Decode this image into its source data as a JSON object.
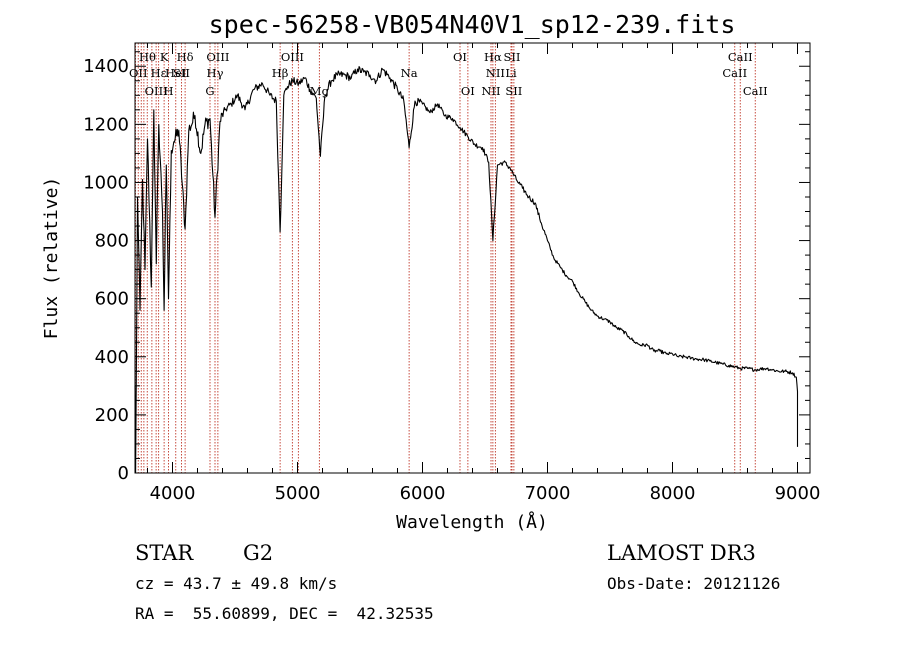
{
  "chart_data": {
    "type": "line",
    "title": "spec-56258-VB054N40V1_sp12-239.fits",
    "xlabel": "Wavelength (Å)",
    "ylabel": "Flux (relative)",
    "xlim": [
      3700,
      9100
    ],
    "ylim": [
      0,
      1480
    ],
    "xticks": [
      4000,
      5000,
      6000,
      7000,
      8000,
      9000
    ],
    "yticks": [
      0,
      200,
      400,
      600,
      800,
      1000,
      1200,
      1400
    ],
    "series": [
      {
        "name": "flux",
        "x": [
          3700,
          3705,
          3720,
          3740,
          3760,
          3780,
          3800,
          3830,
          3850,
          3870,
          3890,
          3920,
          3933,
          3950,
          3968,
          3990,
          4010,
          4050,
          4101,
          4130,
          4180,
          4226,
          4260,
          4300,
          4340,
          4380,
          4420,
          4470,
          4520,
          4580,
          4650,
          4720,
          4780,
          4830,
          4861,
          4890,
          4920,
          4960,
          5010,
          5060,
          5100,
          5150,
          5183,
          5220,
          5270,
          5320,
          5380,
          5430,
          5480,
          5530,
          5580,
          5630,
          5680,
          5740,
          5800,
          5850,
          5893,
          5940,
          6000,
          6060,
          6120,
          6180,
          6240,
          6300,
          6360,
          6420,
          6480,
          6530,
          6563,
          6600,
          6650,
          6700,
          6750,
          6800,
          6850,
          6900,
          6950,
          7000,
          7050,
          7100,
          7150,
          7200,
          7250,
          7300,
          7350,
          7400,
          7450,
          7500,
          7550,
          7600,
          7650,
          7700,
          7750,
          7800,
          7850,
          7900,
          7950,
          8000,
          8050,
          8100,
          8150,
          8200,
          8250,
          8300,
          8350,
          8400,
          8450,
          8498,
          8542,
          8600,
          8662,
          8700,
          8750,
          8800,
          8850,
          8900,
          8960,
          8990,
          9000,
          9000
        ],
        "values": [
          300,
          0,
          950,
          560,
          1010,
          700,
          1150,
          640,
          1250,
          720,
          1200,
          900,
          560,
          1060,
          600,
          1110,
          1140,
          1180,
          840,
          1180,
          1230,
          1100,
          1200,
          1220,
          880,
          1210,
          1250,
          1270,
          1300,
          1250,
          1320,
          1340,
          1300,
          1280,
          830,
          1300,
          1330,
          1350,
          1340,
          1360,
          1320,
          1290,
          1090,
          1300,
          1350,
          1370,
          1370,
          1360,
          1390,
          1380,
          1370,
          1350,
          1390,
          1360,
          1320,
          1280,
          1120,
          1280,
          1270,
          1240,
          1270,
          1230,
          1220,
          1190,
          1160,
          1130,
          1120,
          1070,
          800,
          1060,
          1070,
          1050,
          1010,
          980,
          950,
          930,
          860,
          800,
          740,
          710,
          680,
          660,
          620,
          590,
          560,
          540,
          530,
          520,
          500,
          490,
          470,
          450,
          440,
          440,
          420,
          420,
          410,
          410,
          400,
          400,
          395,
          392,
          390,
          385,
          380,
          375,
          370,
          365,
          360,
          360,
          355,
          358,
          360,
          355,
          350,
          350,
          345,
          330,
          280,
          90
        ]
      }
    ],
    "line_markers": [
      {
        "x": 3704,
        "label": ""
      },
      {
        "x": 3726,
        "label": "OII"
      },
      {
        "x": 3750,
        "label": ""
      },
      {
        "x": 3771,
        "label": ""
      },
      {
        "x": 3798,
        "label": ""
      },
      {
        "x": 3835,
        "label": ""
      },
      {
        "x": 3869,
        "label": "OIII"
      },
      {
        "x": 3889,
        "label": "Hε"
      },
      {
        "x": 3933,
        "label": "K"
      },
      {
        "x": 3968,
        "label": "H"
      },
      {
        "x": 4026,
        "label": "HeI"
      },
      {
        "x": 4072,
        "label": "SII"
      },
      {
        "x": 4101,
        "label": "Hδ"
      },
      {
        "x": 4300,
        "label": "G"
      },
      {
        "x": 4340,
        "label": "Hγ"
      },
      {
        "x": 4363,
        "label": "OIII"
      },
      {
        "x": 4861,
        "label": "Hβ"
      },
      {
        "x": 4959,
        "label": "OIII"
      },
      {
        "x": 5007,
        "label": ""
      },
      {
        "x": 5175,
        "label": "Mg"
      },
      {
        "x": 5893,
        "label": "Na"
      },
      {
        "x": 6300,
        "label": "OI"
      },
      {
        "x": 6363,
        "label": "OI"
      },
      {
        "x": 6548,
        "label": "NII"
      },
      {
        "x": 6563,
        "label": "Hα"
      },
      {
        "x": 6583,
        "label": "NII"
      },
      {
        "x": 6708,
        "label": "Li"
      },
      {
        "x": 6716,
        "label": "SII"
      },
      {
        "x": 6731,
        "label": "SII"
      },
      {
        "x": 8498,
        "label": "CaII"
      },
      {
        "x": 8542,
        "label": "CaII"
      },
      {
        "x": 8662,
        "label": "CaII"
      }
    ],
    "label_rows": [
      [
        {
          "text": "Hθ",
          "x": 3800
        },
        {
          "text": "K",
          "x": 3933
        },
        {
          "text": "Hδ",
          "x": 4101
        },
        {
          "text": "OIII",
          "x": 4363
        },
        {
          "text": "OIII",
          "x": 4959
        },
        {
          "text": "OI",
          "x": 6300
        },
        {
          "text": "Hα",
          "x": 6563
        },
        {
          "text": "SII",
          "x": 6716
        },
        {
          "text": "CaII",
          "x": 8542
        }
      ],
      [
        {
          "text": "OII",
          "x": 3726
        },
        {
          "text": "Hε",
          "x": 3889
        },
        {
          "text": "HeI",
          "x": 4026
        },
        {
          "text": "SII",
          "x": 4072
        },
        {
          "text": "Hγ",
          "x": 4340
        },
        {
          "text": "Hβ",
          "x": 4861
        },
        {
          "text": "Na",
          "x": 5893
        },
        {
          "text": "NII",
          "x": 6583
        },
        {
          "text": "Li",
          "x": 6708
        },
        {
          "text": "CaII",
          "x": 8498
        }
      ],
      [
        {
          "text": "OIII",
          "x": 3869
        },
        {
          "text": "H",
          "x": 3968
        },
        {
          "text": "G",
          "x": 4300
        },
        {
          "text": "Mg",
          "x": 5175
        },
        {
          "text": "OI",
          "x": 6363
        },
        {
          "text": "NII",
          "x": 6548
        },
        {
          "text": "SII",
          "x": 6731
        },
        {
          "text": "CaII",
          "x": 8662
        }
      ]
    ]
  },
  "info": {
    "class": "STAR",
    "subclass": "G2",
    "survey": "LAMOST DR3",
    "cz": "cz = 43.7 ± 49.8 km/s",
    "obs_date": "Obs-Date: 20121126",
    "coords": "RA =  55.60899, DEC =  42.32535"
  },
  "colors": {
    "marker": "#c0392b",
    "spectrum": "#000000",
    "axis": "#000000"
  }
}
